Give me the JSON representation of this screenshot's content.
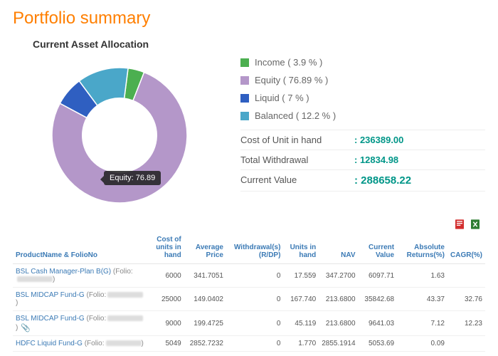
{
  "page_title": "Portfolio summary",
  "chart": {
    "title": "Current Asset Allocation",
    "type": "donut",
    "inner_pct": 0.55,
    "slices": [
      {
        "label": "Income",
        "value": 3.9,
        "color": "#4caf50"
      },
      {
        "label": "Equity",
        "value": 76.89,
        "color": "#b497c9"
      },
      {
        "label": "Liquid",
        "value": 7,
        "color": "#2f5fc1"
      },
      {
        "label": "Balanced",
        "value": 12.2,
        "color": "#4aa7c9"
      }
    ],
    "tooltip_slice": "Equity",
    "tooltip_value": "76.89"
  },
  "legend_template": "{label} ( {value} % )",
  "stats": [
    {
      "label": "Cost of Unit in hand",
      "value": "236389.00"
    },
    {
      "label": "Total Withdrawal",
      "value": "12834.98"
    },
    {
      "label": "Current Value",
      "value": "288658.22"
    }
  ],
  "export": {
    "pdf": "pdf-icon",
    "xls": "xls-icon"
  },
  "table": {
    "headers": [
      "ProductName & FolioNo",
      "Cost of units in hand",
      "Average Price",
      "Withdrawal(s) (R/DP)",
      "Units in hand",
      "NAV",
      "Current Value",
      "Absolute Returns(%)",
      "CAGR(%)"
    ],
    "rows": [
      {
        "name": "BSL Cash Manager-Plan B(G)",
        "folio_prefix": "(Folio:",
        "clip": false,
        "cells": [
          "6000",
          "341.7051",
          "0",
          "17.559",
          "347.2700",
          "6097.71",
          "1.63",
          ""
        ]
      },
      {
        "name": "BSL MIDCAP Fund-G",
        "folio_prefix": "(Folio:",
        "clip": false,
        "cells": [
          "25000",
          "149.0402",
          "0",
          "167.740",
          "213.6800",
          "35842.68",
          "43.37",
          "32.76"
        ]
      },
      {
        "name": "BSL MIDCAP Fund-G",
        "folio_prefix": "(Folio:",
        "clip": true,
        "cells": [
          "9000",
          "199.4725",
          "0",
          "45.119",
          "213.6800",
          "9641.03",
          "7.12",
          "12.23"
        ]
      },
      {
        "name": "HDFC Liquid Fund-G",
        "folio_prefix": "(Folio:",
        "clip": false,
        "cells": [
          "5049",
          "2852.7232",
          "0",
          "1.770",
          "2855.1914",
          "5053.69",
          "0.09",
          ""
        ]
      }
    ]
  }
}
